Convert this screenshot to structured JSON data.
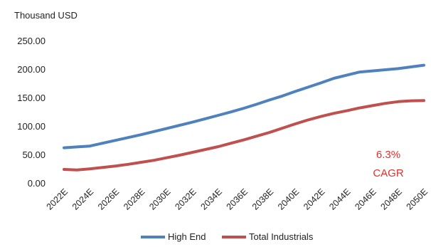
{
  "chart_data": {
    "type": "line",
    "unit_label": "Thousand USD",
    "categories": [
      "2022E",
      "2023E",
      "2024E",
      "2025E",
      "2026E",
      "2027E",
      "2028E",
      "2029E",
      "2030E",
      "2031E",
      "2032E",
      "2033E",
      "2034E",
      "2035E",
      "2036E",
      "2037E",
      "2038E",
      "2039E",
      "2040E",
      "2041E",
      "2042E",
      "2043E",
      "2044E",
      "2045E",
      "2046E",
      "2047E",
      "2048E",
      "2049E",
      "2050E"
    ],
    "tick_labels": [
      "2022E",
      "2024E",
      "2026E",
      "2028E",
      "2030E",
      "2032E",
      "2034E",
      "2036E",
      "2038E",
      "2040E",
      "2042E",
      "2044E",
      "2046E",
      "2048E",
      "2050E"
    ],
    "y_ticks": [
      "0.00",
      "50.00",
      "100.00",
      "150.00",
      "200.00",
      "250.00"
    ],
    "ylim": [
      0,
      250
    ],
    "series": [
      {
        "name": "High End",
        "color": "#4f81bd",
        "values": [
          63,
          64.5,
          66,
          71,
          76,
          81,
          86,
          91.5,
          97,
          102.5,
          108,
          114,
          120,
          126,
          132.5,
          139.5,
          147,
          154,
          162,
          169.5,
          177,
          185,
          190.5,
          196,
          198,
          200,
          202,
          205,
          208
        ]
      },
      {
        "name": "Total Industrials",
        "color": "#c0504d",
        "values": [
          25,
          24,
          26,
          28.5,
          31,
          34,
          37.5,
          41,
          45.5,
          50,
          55,
          60,
          65,
          71,
          77,
          83.5,
          90,
          97.5,
          105,
          112,
          118,
          123.5,
          128,
          133,
          137,
          141,
          144,
          145.5,
          146
        ]
      }
    ],
    "annotation": {
      "line1": "6.3%",
      "line2": "CAGR",
      "color": "#e0302a"
    },
    "grid": false,
    "legend_position": "bottom"
  }
}
